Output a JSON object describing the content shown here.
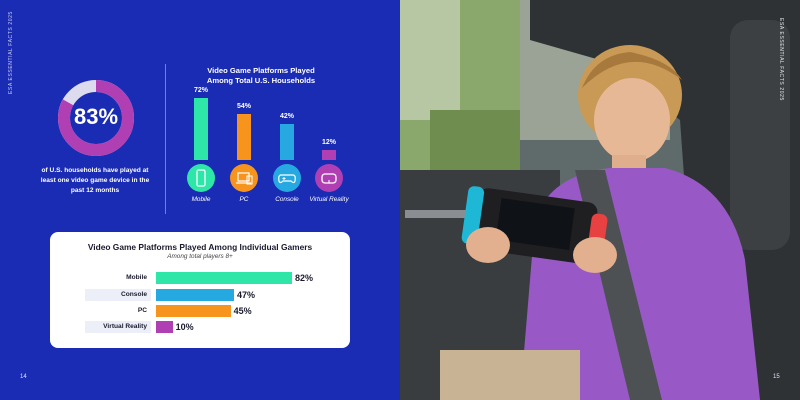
{
  "left_page": {
    "vertical_label": "ESA ESSENTIAL FACTS 2025",
    "page_number": "14",
    "donut": {
      "percent_label": "83%",
      "value": 83,
      "caption": "of U.S. households have played at least one video game device in the past 12 months"
    }
  },
  "right_page": {
    "vertical_label": "ESA ESSENTIAL FACTS 2025",
    "page_number": "15"
  },
  "colors": {
    "background": "#1a2cb4",
    "mobile": "#2ee6a8",
    "pc": "#f7941d",
    "console": "#26a8e0",
    "vr": "#b13fb4",
    "donut_track": "#dcdcee"
  },
  "chart_data": [
    {
      "type": "bar",
      "title": "Video Game Platforms Played Among Total U.S. Households",
      "categories": [
        "Mobile",
        "PC",
        "Console",
        "Virtual Reality"
      ],
      "values": [
        72,
        54,
        42,
        12
      ],
      "value_labels": [
        "72%",
        "54%",
        "42%",
        "12%"
      ],
      "icons": [
        "phone-icon",
        "laptop-icon",
        "gamepad-icon",
        "vr-headset-icon"
      ],
      "unit": "%"
    },
    {
      "type": "bar",
      "orientation": "horizontal",
      "title": "Video Game Platforms Played Among Individual Gamers",
      "subtitle": "Among total players 8+",
      "categories": [
        "Mobile",
        "Console",
        "PC",
        "Virtual Reality"
      ],
      "values": [
        82,
        47,
        45,
        10
      ],
      "value_labels": [
        "82%",
        "47%",
        "45%",
        "10%"
      ],
      "unit": "%"
    }
  ]
}
